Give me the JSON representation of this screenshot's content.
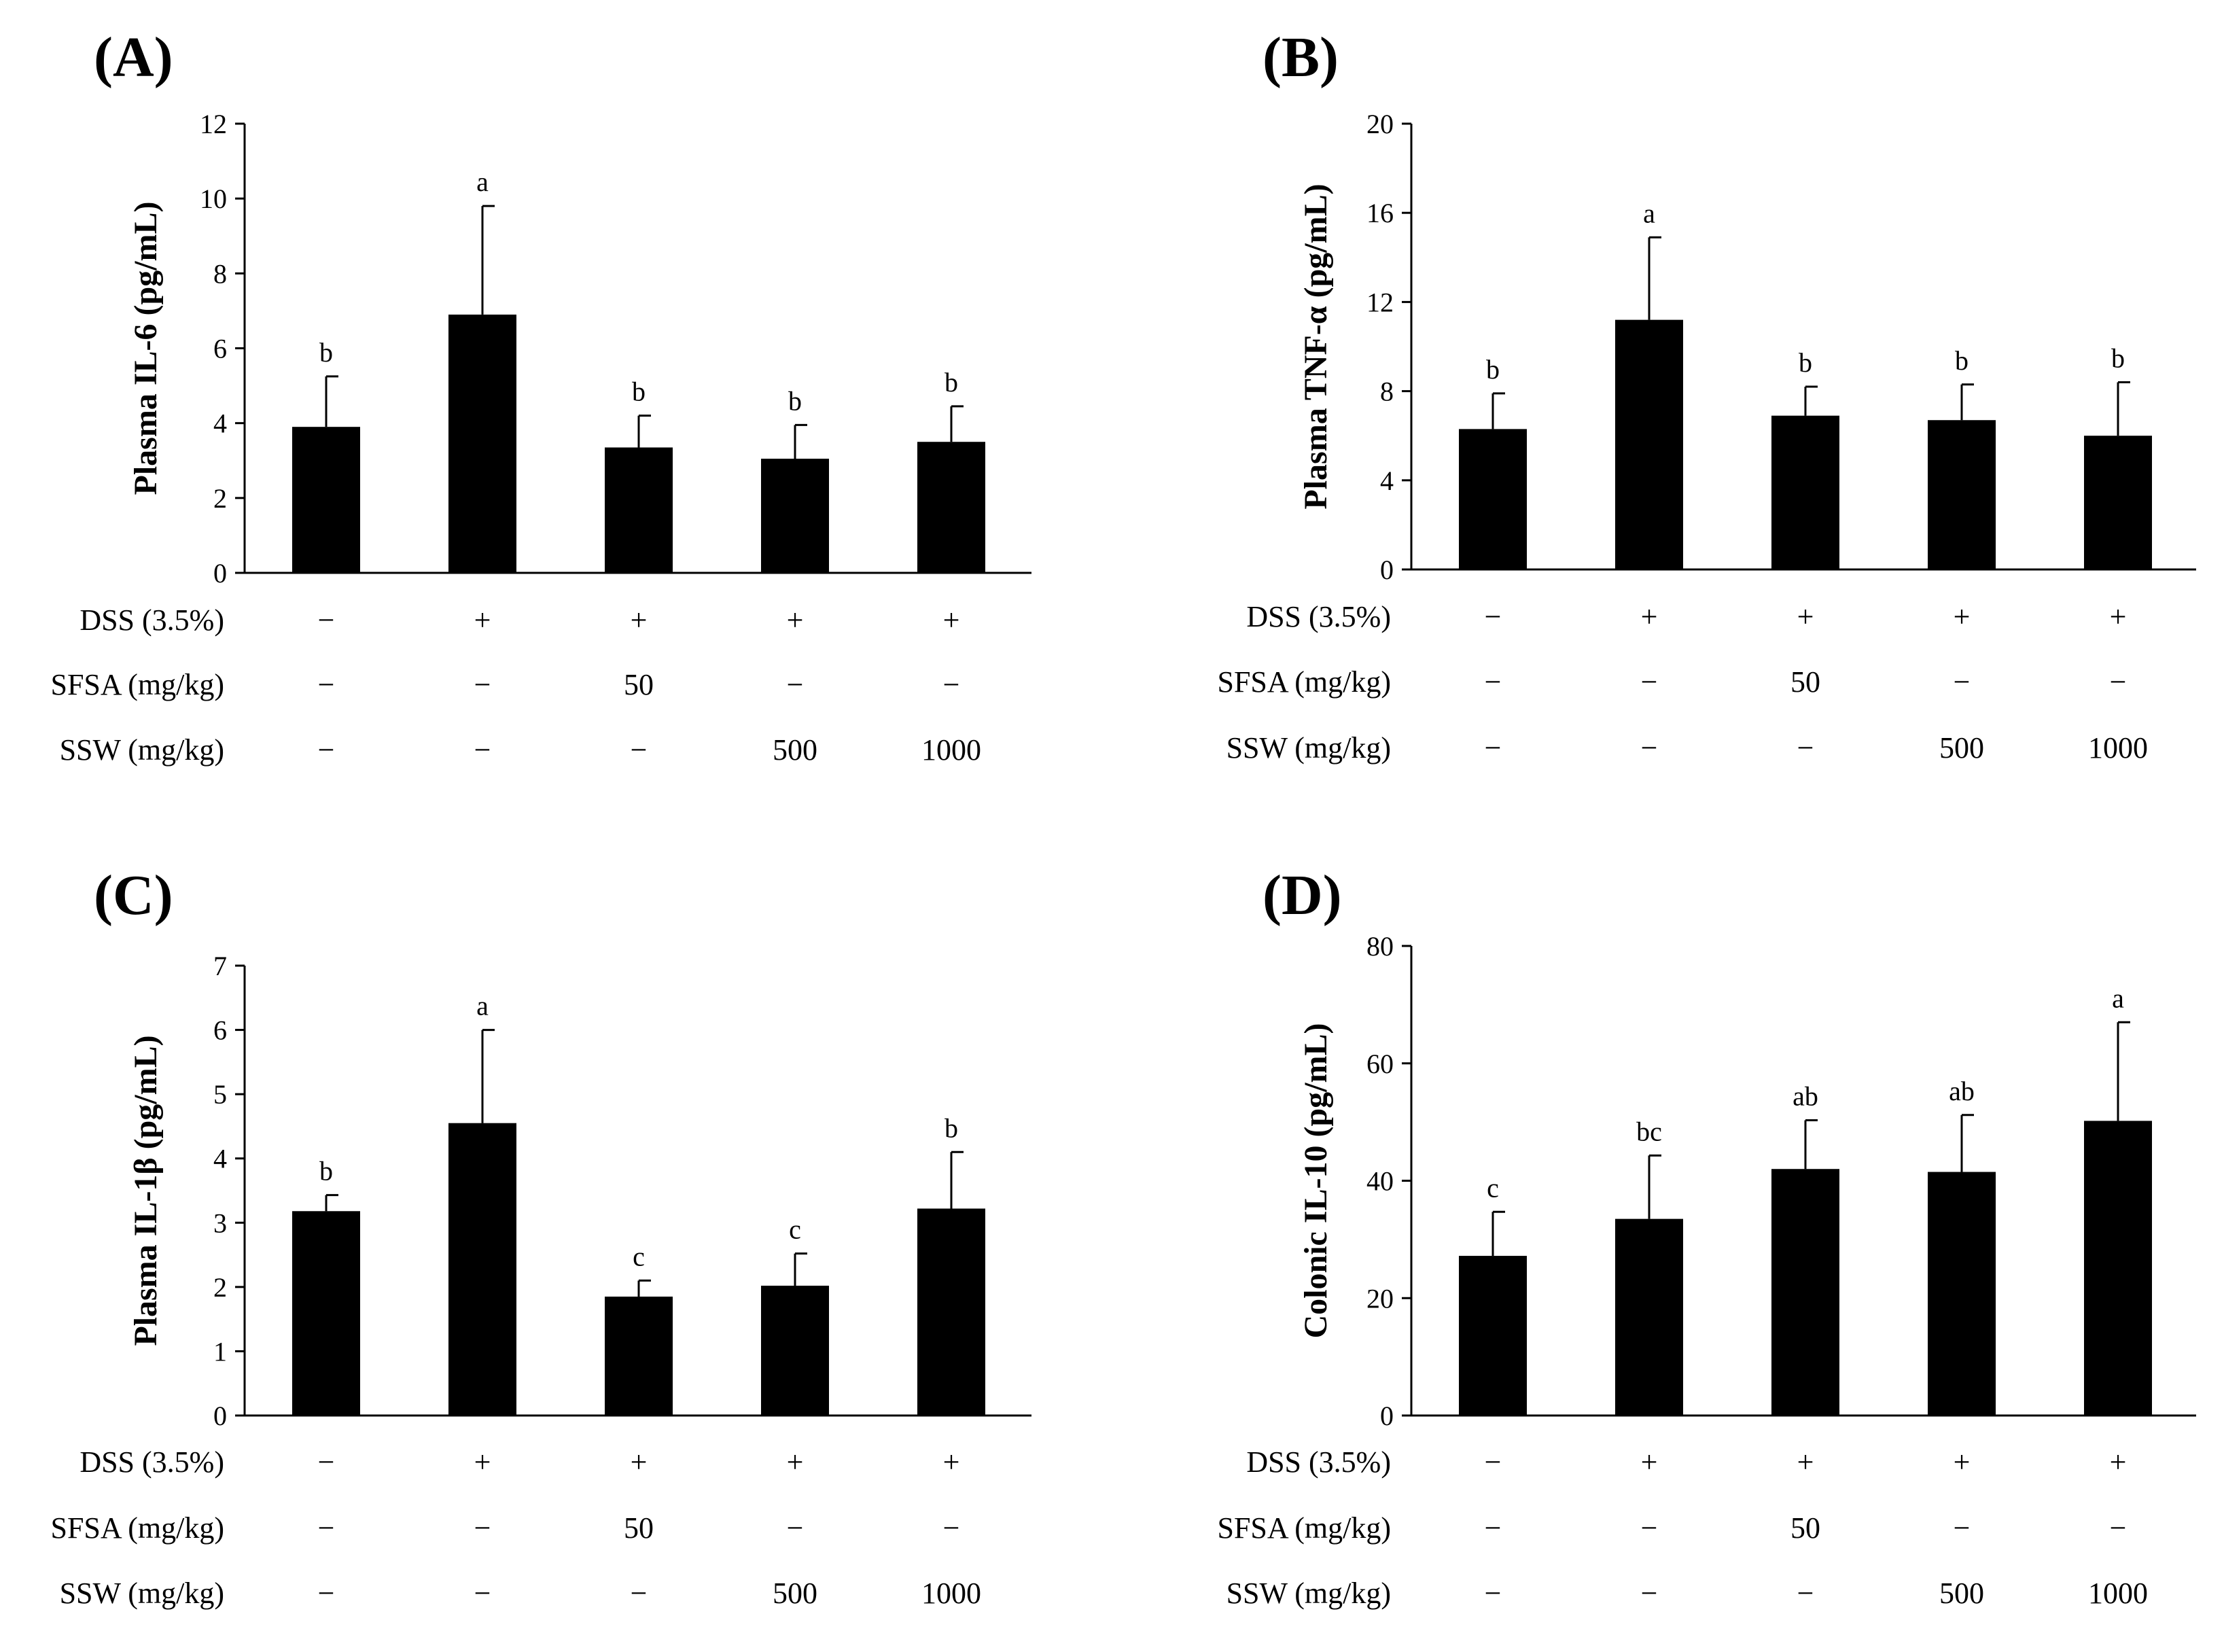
{
  "figure": {
    "rows": {
      "dss": "DSS (3.5%)",
      "sfsa": "SFSA (mg/kg)",
      "ssw": "SSW (mg/kg)"
    },
    "groups": [
      {
        "dss": "−",
        "sfsa": "−",
        "ssw": "−"
      },
      {
        "dss": "+",
        "sfsa": "−",
        "ssw": "−"
      },
      {
        "dss": "+",
        "sfsa": "50",
        "ssw": "−"
      },
      {
        "dss": "+",
        "sfsa": "−",
        "ssw": "500"
      },
      {
        "dss": "+",
        "sfsa": "−",
        "ssw": "1000"
      }
    ]
  },
  "chart_data": [
    {
      "type": "bar",
      "panel_label": "(A)",
      "title": "",
      "xlabel": "",
      "ylabel": "Plasma IL-6 (pg/mL)",
      "ylim": [
        0,
        12
      ],
      "yticks": [
        0,
        2,
        4,
        6,
        8,
        10,
        12
      ],
      "values": [
        3.9,
        6.9,
        3.35,
        3.05,
        3.5
      ],
      "errors": [
        1.35,
        2.9,
        0.85,
        0.9,
        0.95
      ],
      "significance": [
        "b",
        "a",
        "b",
        "b",
        "b"
      ],
      "color": "#000000"
    },
    {
      "type": "bar",
      "panel_label": "(B)",
      "title": "",
      "xlabel": "",
      "ylabel": "Plasma TNF-α (pg/mL)",
      "ylim": [
        0,
        20
      ],
      "yticks": [
        0,
        4,
        8,
        12,
        16,
        20
      ],
      "values": [
        6.3,
        11.2,
        6.9,
        6.7,
        6.0
      ],
      "errors": [
        1.6,
        3.7,
        1.3,
        1.6,
        2.4
      ],
      "significance": [
        "b",
        "a",
        "b",
        "b",
        "b"
      ],
      "color": "#000000"
    },
    {
      "type": "bar",
      "panel_label": "(C)",
      "title": "",
      "xlabel": "",
      "ylabel": "Plasma IL-1β (pg/mL)",
      "ylim": [
        0,
        7
      ],
      "yticks": [
        0,
        1,
        2,
        3,
        4,
        5,
        6,
        7
      ],
      "values": [
        3.18,
        4.55,
        1.85,
        2.02,
        3.22
      ],
      "errors": [
        0.25,
        1.45,
        0.25,
        0.5,
        0.88
      ],
      "significance": [
        "b",
        "a",
        "c",
        "c",
        "b"
      ],
      "color": "#000000"
    },
    {
      "type": "bar",
      "panel_label": "(D)",
      "title": "",
      "xlabel": "",
      "ylabel": "Colonic IL-10 (pg/mL)",
      "ylim": [
        0,
        80
      ],
      "yticks": [
        0,
        20,
        40,
        60,
        80
      ],
      "values": [
        27.2,
        33.5,
        42.0,
        41.5,
        50.2
      ],
      "errors": [
        7.5,
        10.8,
        8.3,
        9.7,
        16.8
      ],
      "significance": [
        "c",
        "bc",
        "ab",
        "ab",
        "a"
      ],
      "color": "#000000"
    }
  ]
}
